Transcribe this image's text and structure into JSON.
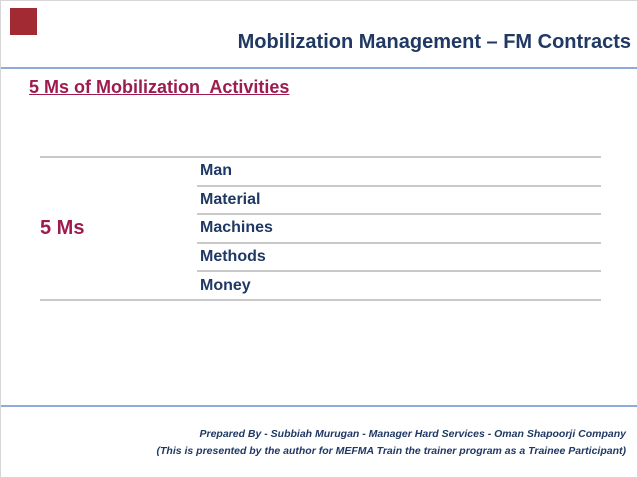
{
  "slide": {
    "title": "Mobilization Management – FM Contracts",
    "heading": "5 Ms of Mobilization  Activities",
    "table": {
      "row_label": "5 Ms",
      "items": [
        "Man",
        "Material",
        "Machines",
        "Methods",
        "Money"
      ]
    },
    "footer": {
      "line1": "Prepared By - Subbiah Murugan - Manager Hard Services - Oman Shapoorji Company",
      "line2": "(This is presented by the author for MEFMA Train the trainer program as a Trainee Participant)"
    },
    "colors": {
      "navy": "#1F3864",
      "maroon": "#9E1B4E",
      "accent_blue": "#8FAADC",
      "table_line_gray": "#C9C9C9",
      "corner_square_red": "#A12A33"
    }
  }
}
